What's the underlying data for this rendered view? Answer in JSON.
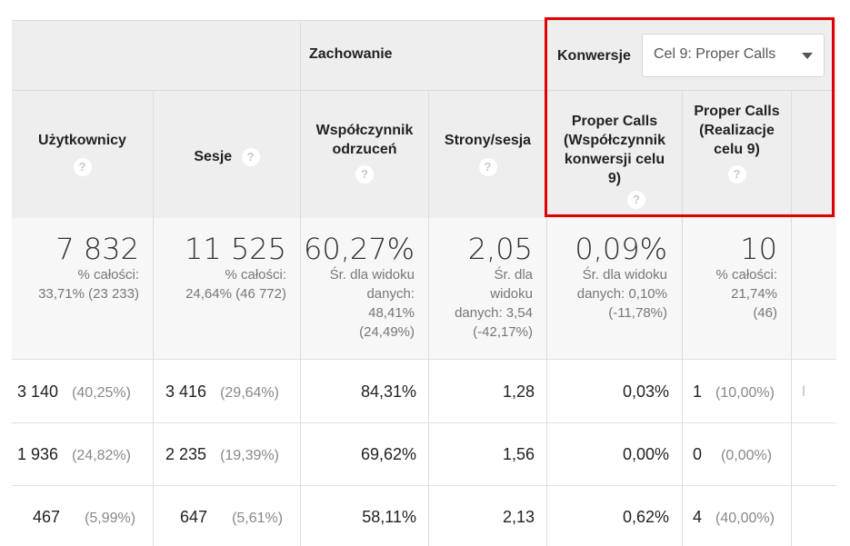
{
  "header": {
    "behavior_title": "Zachowanie",
    "conversions_label": "Konwersje",
    "goal_selector_value": "Cel 9: Proper Calls"
  },
  "columns": [
    {
      "label": "Użytkownicy"
    },
    {
      "label": "Sesje"
    },
    {
      "label": "Współczynnik odrzuceń"
    },
    {
      "label": "Strony/sesja"
    },
    {
      "label": "Proper Calls (Współczynnik konwersji celu 9)"
    },
    {
      "label": "Proper Calls (Realizacje celu 9)"
    }
  ],
  "help_glyph": "?",
  "totals": {
    "users": {
      "value": "7 832",
      "sub": [
        "% całości:",
        "33,71% (23 233)"
      ]
    },
    "sessions": {
      "value": "11 525",
      "sub": [
        "% całości:",
        "24,64% (46 772)"
      ]
    },
    "bounce": {
      "value": "60,27%",
      "sub": [
        "Śr. dla widoku",
        "danych:",
        "48,41%",
        "(24,49%)"
      ]
    },
    "pages": {
      "value": "2,05",
      "sub": [
        "Śr. dla",
        "widoku",
        "danych: 3,54",
        "(-42,17%)"
      ]
    },
    "conv_rate": {
      "value": "0,09%",
      "sub": [
        "Śr. dla widoku",
        "danych: 0,10%",
        "(-11,78%)"
      ]
    },
    "completions": {
      "value": "10",
      "sub": [
        "% całości:",
        "21,74%",
        "(46)"
      ]
    }
  },
  "rows": [
    {
      "users": "3 140",
      "users_pct": "(40,25%)",
      "sessions": "3 416",
      "sessions_pct": "(29,64%)",
      "bounce": "84,31%",
      "pages": "1,28",
      "conv_rate": "0,03%",
      "completions": "1",
      "completions_pct": "(10,00%)"
    },
    {
      "users": "1 936",
      "users_pct": "(24,82%)",
      "sessions": "2 235",
      "sessions_pct": "(19,39%)",
      "bounce": "69,62%",
      "pages": "1,56",
      "conv_rate": "0,00%",
      "completions": "0",
      "completions_pct": "(0,00%)"
    },
    {
      "users": "467",
      "users_pct": "(5,99%)",
      "sessions": "647",
      "sessions_pct": "(5,61%)",
      "bounce": "58,11%",
      "pages": "2,13",
      "conv_rate": "0,62%",
      "completions": "4",
      "completions_pct": "(40,00%)"
    }
  ],
  "colors": {
    "header_bg": "#eeeeee",
    "totals_bg": "#f7f7f7",
    "highlight_border": "#e00000",
    "grid_line": "#dcdcdc"
  }
}
